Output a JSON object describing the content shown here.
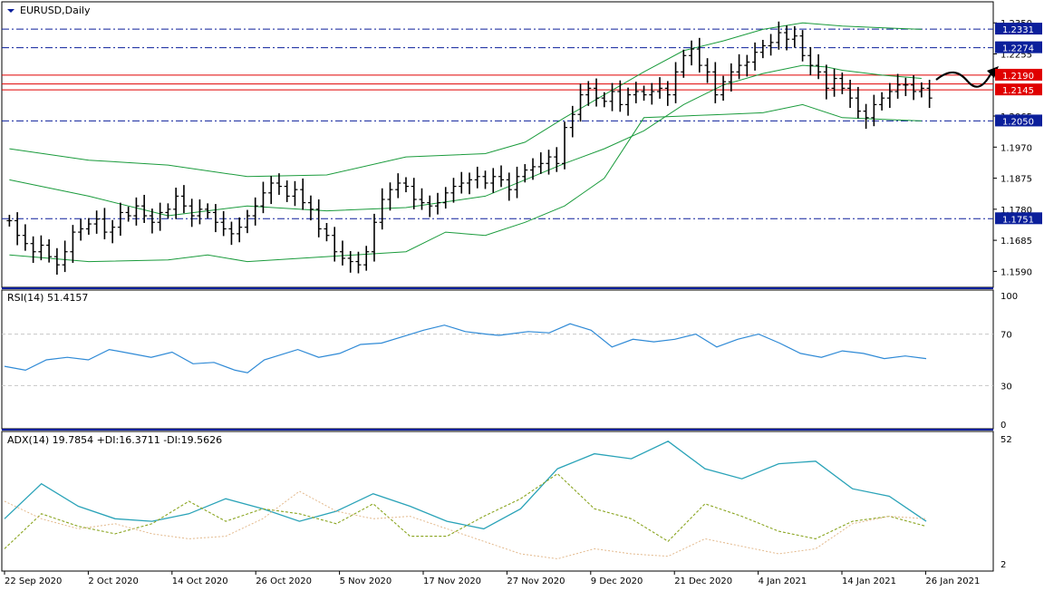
{
  "window": {
    "symbol_label": "EURUSD,Daily"
  },
  "colors": {
    "price": "#000000",
    "bands": "#1a9b3c",
    "levels_blue": "#0b1f9b",
    "levels_red": "#e00000",
    "rsi": "#2f8ad6",
    "adx": "#2aa3b8",
    "plus_di": "#8aa520",
    "minus_di": "#e3b98c",
    "axis": "#000000"
  },
  "chart_data": [
    {
      "type": "line",
      "panel": "price",
      "title": "EURUSD,Daily",
      "ylim": [
        1.1555,
        1.237
      ],
      "y_ticks": [
        "1.2350",
        "1.2255",
        "1.2065",
        "1.1970",
        "1.1875",
        "1.1780",
        "1.1685",
        "1.1590"
      ],
      "price_labels": [
        {
          "text": "1.2331",
          "value": 1.2331,
          "style": "blue"
        },
        {
          "text": "1.2274",
          "value": 1.2274,
          "style": "blue"
        },
        {
          "text": "1.2190",
          "value": 1.219,
          "style": "red"
        },
        {
          "text": "1.2145",
          "value": 1.2145,
          "style": "red"
        },
        {
          "text": "1.2050",
          "value": 1.205,
          "style": "blue"
        },
        {
          "text": "1.1751",
          "value": 1.1751,
          "style": "blue"
        }
      ],
      "horizontal_levels": [
        {
          "value": 1.2331,
          "style": "dash-dot",
          "color": "blue"
        },
        {
          "value": 1.2274,
          "style": "dash-dot",
          "color": "blue"
        },
        {
          "value": 1.205,
          "style": "dash-dot",
          "color": "blue"
        },
        {
          "value": 1.1751,
          "style": "dash-dot",
          "color": "blue"
        },
        {
          "value": 1.219,
          "style": "solid",
          "color": "red"
        },
        {
          "value": 1.2163,
          "style": "solid",
          "color": "red"
        },
        {
          "value": 1.2145,
          "style": "solid",
          "color": "red"
        }
      ],
      "x_labels": [
        "22 Sep 2020",
        "2 Oct 2020",
        "14 Oct 2020",
        "26 Oct 2020",
        "5 Nov 2020",
        "17 Nov 2020",
        "27 Nov 2020",
        "9 Dec 2020",
        "21 Dec 2020",
        "4 Jan 2021",
        "14 Jan 2021",
        "26 Jan 2021"
      ],
      "bars_close": [
        1.1745,
        1.17,
        1.1675,
        1.165,
        1.167,
        1.1635,
        1.161,
        1.165,
        1.171,
        1.172,
        1.1735,
        1.175,
        1.171,
        1.1725,
        1.177,
        1.176,
        1.179,
        1.176,
        1.174,
        1.177,
        1.178,
        1.182,
        1.179,
        1.176,
        1.178,
        1.177,
        1.174,
        1.172,
        1.1705,
        1.1725,
        1.176,
        1.179,
        1.183,
        1.186,
        1.185,
        1.182,
        1.184,
        1.18,
        1.178,
        1.172,
        1.17,
        1.165,
        1.163,
        1.162,
        1.161,
        1.165,
        1.174,
        1.181,
        1.184,
        1.186,
        1.185,
        1.181,
        1.18,
        1.179,
        1.18,
        1.183,
        1.185,
        1.186,
        1.187,
        1.188,
        1.186,
        1.188,
        1.187,
        1.184,
        1.188,
        1.19,
        1.191,
        1.192,
        1.194,
        1.192,
        1.203,
        1.207,
        1.213,
        1.215,
        1.212,
        1.211,
        1.214,
        1.21,
        1.213,
        1.214,
        1.213,
        1.214,
        1.215,
        1.213,
        1.22,
        1.225,
        1.227,
        1.222,
        1.22,
        1.213,
        1.217,
        1.22,
        1.222,
        1.223,
        1.226,
        1.228,
        1.229,
        1.232,
        1.23,
        1.231,
        1.225,
        1.222,
        1.22,
        1.215,
        1.218,
        1.215,
        1.212,
        1.208,
        1.206,
        1.21,
        1.212,
        1.214,
        1.216,
        1.216,
        1.214,
        1.215,
        1.212
      ],
      "bollinger_upper": [
        [
          0,
          1.1965
        ],
        [
          10,
          1.193
        ],
        [
          20,
          1.1915
        ],
        [
          30,
          1.188
        ],
        [
          40,
          1.1885
        ],
        [
          50,
          1.194
        ],
        [
          60,
          1.195
        ],
        [
          65,
          1.1985
        ],
        [
          70,
          1.206
        ],
        [
          75,
          1.213
        ],
        [
          80,
          1.22
        ],
        [
          85,
          1.2265
        ],
        [
          90,
          1.2295
        ],
        [
          95,
          1.233
        ],
        [
          100,
          1.235
        ],
        [
          105,
          1.234
        ],
        [
          110,
          1.2335
        ],
        [
          115,
          1.233
        ]
      ],
      "bollinger_middle": [
        [
          0,
          1.187
        ],
        [
          10,
          1.182
        ],
        [
          20,
          1.176
        ],
        [
          30,
          1.179
        ],
        [
          40,
          1.1775
        ],
        [
          50,
          1.1785
        ],
        [
          60,
          1.182
        ],
        [
          65,
          1.187
        ],
        [
          70,
          1.192
        ],
        [
          75,
          1.1965
        ],
        [
          80,
          1.202
        ],
        [
          85,
          1.21
        ],
        [
          90,
          1.216
        ],
        [
          95,
          1.2195
        ],
        [
          100,
          1.222
        ],
        [
          103,
          1.2215
        ],
        [
          105,
          1.2205
        ],
        [
          110,
          1.219
        ],
        [
          115,
          1.218
        ]
      ],
      "bollinger_lower": [
        [
          0,
          1.164
        ],
        [
          10,
          1.162
        ],
        [
          20,
          1.1625
        ],
        [
          25,
          1.164
        ],
        [
          30,
          1.162
        ],
        [
          40,
          1.1635
        ],
        [
          50,
          1.165
        ],
        [
          55,
          1.171
        ],
        [
          60,
          1.17
        ],
        [
          65,
          1.174
        ],
        [
          70,
          1.179
        ],
        [
          75,
          1.1875
        ],
        [
          80,
          1.206
        ],
        [
          85,
          1.2065
        ],
        [
          90,
          1.207
        ],
        [
          95,
          1.2075
        ],
        [
          100,
          1.21
        ],
        [
          105,
          1.206
        ],
        [
          110,
          1.2055
        ],
        [
          115,
          1.205
        ]
      ]
    },
    {
      "type": "line",
      "panel": "rsi",
      "legend_text": "RSI(14) 51.4157",
      "ylim": [
        0,
        100
      ],
      "y_ticks": [
        "100",
        "70",
        "30",
        "0"
      ],
      "levels": [
        70,
        30
      ],
      "series": [
        {
          "name": "RSI(14)",
          "values": [
            [
              0,
              45
            ],
            [
              5,
              42
            ],
            [
              10,
              50
            ],
            [
              15,
              52
            ],
            [
              20,
              50
            ],
            [
              25,
              58
            ],
            [
              30,
              55
            ],
            [
              35,
              52
            ],
            [
              40,
              56
            ],
            [
              45,
              47
            ],
            [
              50,
              48
            ],
            [
              55,
              42
            ],
            [
              58,
              40
            ],
            [
              62,
              50
            ],
            [
              66,
              54
            ],
            [
              70,
              58
            ],
            [
              75,
              52
            ],
            [
              80,
              55
            ],
            [
              85,
              62
            ],
            [
              90,
              63
            ],
            [
              95,
              68
            ],
            [
              100,
              73
            ],
            [
              105,
              77
            ],
            [
              110,
              72
            ],
            [
              115,
              70
            ],
            [
              118,
              69
            ],
            [
              125,
              72
            ],
            [
              130,
              71
            ],
            [
              135,
              78
            ],
            [
              140,
              73
            ],
            [
              145,
              60
            ],
            [
              150,
              66
            ],
            [
              155,
              64
            ],
            [
              160,
              66
            ],
            [
              165,
              70
            ],
            [
              170,
              60
            ],
            [
              175,
              66
            ],
            [
              180,
              70
            ],
            [
              185,
              63
            ],
            [
              190,
              55
            ],
            [
              195,
              52
            ],
            [
              200,
              57
            ],
            [
              205,
              55
            ],
            [
              210,
              51
            ],
            [
              215,
              53
            ],
            [
              220,
              51
            ]
          ]
        }
      ]
    },
    {
      "type": "line",
      "panel": "adx",
      "legend_text": "ADX(14) 19.7854 +DI:16.3711 -DI:19.5626",
      "ylim": [
        2,
        52
      ],
      "y_ticks": [
        "52",
        "2"
      ],
      "series": [
        {
          "name": "ADX(14)",
          "values": [
            [
              0,
              20
            ],
            [
              10,
              34
            ],
            [
              20,
              25
            ],
            [
              30,
              20
            ],
            [
              40,
              19
            ],
            [
              50,
              22
            ],
            [
              60,
              28
            ],
            [
              70,
              24
            ],
            [
              80,
              19
            ],
            [
              90,
              23
            ],
            [
              100,
              30
            ],
            [
              110,
              25
            ],
            [
              120,
              19
            ],
            [
              130,
              16
            ],
            [
              140,
              24
            ],
            [
              150,
              40
            ],
            [
              160,
              46
            ],
            [
              170,
              44
            ],
            [
              180,
              51
            ],
            [
              190,
              40
            ],
            [
              200,
              36
            ],
            [
              210,
              42
            ],
            [
              220,
              43
            ],
            [
              230,
              32
            ],
            [
              240,
              29
            ],
            [
              250,
              19
            ]
          ]
        },
        {
          "name": "+DI",
          "values": [
            [
              0,
              8
            ],
            [
              10,
              22
            ],
            [
              20,
              17
            ],
            [
              30,
              14
            ],
            [
              40,
              18
            ],
            [
              50,
              27
            ],
            [
              60,
              19
            ],
            [
              70,
              24
            ],
            [
              80,
              22
            ],
            [
              90,
              18
            ],
            [
              100,
              26
            ],
            [
              110,
              13
            ],
            [
              120,
              13
            ],
            [
              130,
              21
            ],
            [
              140,
              28
            ],
            [
              150,
              38
            ],
            [
              160,
              24
            ],
            [
              170,
              20
            ],
            [
              180,
              11
            ],
            [
              190,
              26
            ],
            [
              200,
              21
            ],
            [
              210,
              15
            ],
            [
              220,
              12
            ],
            [
              230,
              19
            ],
            [
              240,
              21
            ],
            [
              250,
              17
            ]
          ]
        },
        {
          "name": "-DI",
          "values": [
            [
              0,
              27
            ],
            [
              10,
              20
            ],
            [
              20,
              16
            ],
            [
              30,
              18
            ],
            [
              40,
              14
            ],
            [
              50,
              12
            ],
            [
              60,
              13
            ],
            [
              70,
              20
            ],
            [
              80,
              31
            ],
            [
              90,
              23
            ],
            [
              100,
              20
            ],
            [
              110,
              21
            ],
            [
              120,
              16
            ],
            [
              130,
              11
            ],
            [
              140,
              6
            ],
            [
              150,
              4
            ],
            [
              160,
              8
            ],
            [
              170,
              6
            ],
            [
              180,
              5
            ],
            [
              190,
              12
            ],
            [
              200,
              9
            ],
            [
              210,
              6
            ],
            [
              220,
              8
            ],
            [
              230,
              18
            ],
            [
              240,
              21
            ],
            [
              250,
              20
            ]
          ]
        }
      ]
    }
  ]
}
